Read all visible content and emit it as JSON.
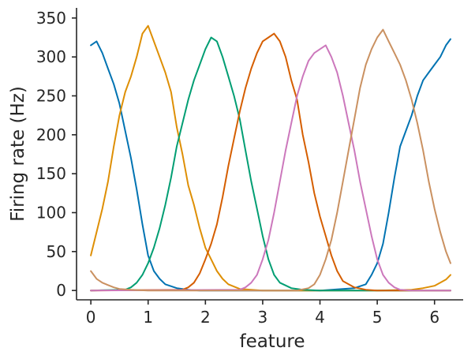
{
  "chart_data": {
    "type": "line",
    "title": "",
    "xlabel": "feature",
    "ylabel": "Firing rate (Hz)",
    "xlim": [
      -0.25,
      6.5
    ],
    "ylim": [
      -12,
      363
    ],
    "xticks": [
      0,
      1,
      2,
      3,
      4,
      5,
      6
    ],
    "yticks": [
      0,
      50,
      100,
      150,
      200,
      250,
      300,
      350
    ],
    "grid": false,
    "legend": "none",
    "series": [
      {
        "color": "#0173b2",
        "x": [
          0.0,
          0.1,
          0.2,
          0.3,
          0.4,
          0.5,
          0.6,
          0.7,
          0.8,
          0.9,
          1.0,
          1.1,
          1.2,
          1.3,
          1.5,
          1.7,
          1.9,
          2.2,
          3.0,
          4.0,
          4.6,
          4.8,
          4.9,
          5.0,
          5.1,
          5.2,
          5.3,
          5.4,
          5.5,
          5.6,
          5.7,
          5.8,
          5.9,
          6.0,
          6.1,
          6.2,
          6.28
        ],
        "y": [
          315,
          320,
          305,
          285,
          265,
          240,
          205,
          170,
          130,
          85,
          45,
          25,
          15,
          8,
          3,
          1,
          0,
          0,
          0,
          0,
          3,
          8,
          20,
          35,
          60,
          100,
          145,
          185,
          205,
          225,
          250,
          270,
          280,
          290,
          300,
          315,
          323
        ]
      },
      {
        "color": "#de8f05",
        "x": [
          0.0,
          0.1,
          0.2,
          0.3,
          0.4,
          0.5,
          0.6,
          0.7,
          0.8,
          0.9,
          1.0,
          1.1,
          1.2,
          1.3,
          1.4,
          1.5,
          1.6,
          1.7,
          1.8,
          1.9,
          2.0,
          2.1,
          2.2,
          2.3,
          2.4,
          2.6,
          3.0,
          4.0,
          5.0,
          5.6,
          5.8,
          6.0,
          6.1,
          6.2,
          6.28
        ],
        "y": [
          45,
          75,
          105,
          140,
          185,
          225,
          255,
          275,
          300,
          330,
          340,
          320,
          300,
          280,
          255,
          210,
          175,
          135,
          110,
          80,
          55,
          40,
          25,
          15,
          8,
          2,
          0,
          0,
          0,
          1,
          3,
          6,
          10,
          14,
          20
        ]
      },
      {
        "color": "#029e73",
        "x": [
          0.0,
          0.6,
          0.7,
          0.8,
          0.9,
          1.0,
          1.1,
          1.2,
          1.3,
          1.4,
          1.5,
          1.6,
          1.7,
          1.8,
          1.9,
          2.0,
          2.1,
          2.2,
          2.3,
          2.4,
          2.5,
          2.6,
          2.7,
          2.8,
          2.9,
          3.0,
          3.1,
          3.2,
          3.3,
          3.5,
          3.7,
          4.0,
          6.28
        ],
        "y": [
          0,
          1,
          4,
          10,
          20,
          35,
          55,
          80,
          110,
          145,
          185,
          215,
          245,
          270,
          290,
          310,
          325,
          320,
          300,
          275,
          250,
          220,
          180,
          140,
          105,
          70,
          40,
          20,
          10,
          3,
          1,
          0,
          0
        ]
      },
      {
        "color": "#d55e00",
        "x": [
          0.0,
          1.6,
          1.7,
          1.8,
          1.9,
          2.0,
          2.1,
          2.2,
          2.3,
          2.4,
          2.5,
          2.6,
          2.7,
          2.8,
          2.9,
          3.0,
          3.1,
          3.2,
          3.3,
          3.4,
          3.5,
          3.6,
          3.7,
          3.8,
          3.9,
          4.0,
          4.1,
          4.2,
          4.3,
          4.4,
          4.6,
          4.8,
          5.0,
          6.28
        ],
        "y": [
          0,
          1,
          4,
          10,
          22,
          40,
          60,
          85,
          120,
          160,
          195,
          230,
          260,
          285,
          305,
          320,
          325,
          330,
          320,
          300,
          270,
          245,
          200,
          165,
          125,
          95,
          70,
          45,
          25,
          12,
          4,
          1,
          0,
          0
        ]
      },
      {
        "color": "#cc78bc",
        "x": [
          0.0,
          2.6,
          2.7,
          2.8,
          2.9,
          3.0,
          3.1,
          3.2,
          3.3,
          3.4,
          3.5,
          3.6,
          3.7,
          3.8,
          3.9,
          4.0,
          4.1,
          4.2,
          4.3,
          4.4,
          4.5,
          4.6,
          4.7,
          4.8,
          4.9,
          5.0,
          5.1,
          5.2,
          5.3,
          5.4,
          5.6,
          6.0,
          6.28
        ],
        "y": [
          0,
          1,
          4,
          10,
          20,
          40,
          65,
          100,
          140,
          180,
          215,
          250,
          275,
          295,
          305,
          310,
          315,
          300,
          280,
          250,
          215,
          180,
          140,
          105,
          70,
          40,
          20,
          10,
          4,
          1,
          0,
          0,
          0
        ]
      },
      {
        "color": "#ca9161",
        "x": [
          0.0,
          0.1,
          0.2,
          0.3,
          0.4,
          0.5,
          0.7,
          1.0,
          3.6,
          3.8,
          3.9,
          4.0,
          4.1,
          4.2,
          4.3,
          4.4,
          4.5,
          4.6,
          4.7,
          4.8,
          4.9,
          5.0,
          5.1,
          5.2,
          5.3,
          5.4,
          5.5,
          5.6,
          5.7,
          5.8,
          5.9,
          6.0,
          6.1,
          6.2,
          6.28
        ],
        "y": [
          25,
          15,
          10,
          7,
          4,
          2,
          1,
          0,
          0,
          3,
          8,
          20,
          40,
          65,
          100,
          140,
          180,
          220,
          260,
          290,
          310,
          325,
          335,
          320,
          305,
          290,
          270,
          245,
          215,
          180,
          140,
          105,
          75,
          50,
          35
        ]
      }
    ]
  }
}
